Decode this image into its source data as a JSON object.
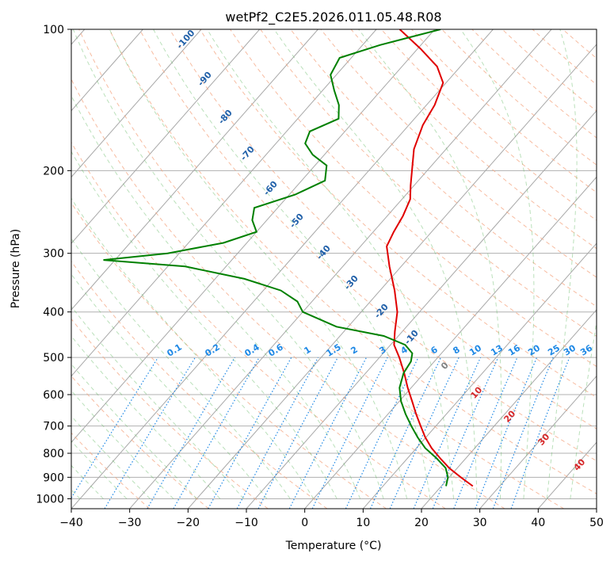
{
  "chart_data": {
    "type": "line",
    "title": "wetPf2_C2E5.2026.011.05.48.R08",
    "xlabel": "Temperature (°C)",
    "ylabel": "Pressure (hPa)",
    "xlim": [
      -40,
      50
    ],
    "ylim": [
      1050,
      100
    ],
    "y_scale": "log",
    "skew": true,
    "grid": true,
    "x_ticks": [
      -40,
      -30,
      -20,
      -10,
      0,
      10,
      20,
      30,
      40,
      50
    ],
    "y_ticks": [
      100,
      200,
      300,
      400,
      500,
      600,
      700,
      800,
      900,
      1000
    ],
    "series": [
      {
        "color": "#e00000",
        "points": [
          [
            940,
            25.4
          ],
          [
            900,
            22.0
          ],
          [
            860,
            18.6
          ],
          [
            820,
            15.6
          ],
          [
            780,
            12.6
          ],
          [
            740,
            9.9
          ],
          [
            700,
            7.4
          ],
          [
            660,
            4.8
          ],
          [
            620,
            2.2
          ],
          [
            580,
            -0.6
          ],
          [
            540,
            -3.4
          ],
          [
            500,
            -6.6
          ],
          [
            470,
            -9.4
          ],
          [
            440,
            -11.3
          ],
          [
            400,
            -13.8
          ],
          [
            360,
            -17.5
          ],
          [
            320,
            -22.0
          ],
          [
            290,
            -25.5
          ],
          [
            270,
            -26.5
          ],
          [
            250,
            -27.3
          ],
          [
            230,
            -28.6
          ],
          [
            215,
            -30.6
          ],
          [
            200,
            -32.6
          ],
          [
            180,
            -35.5
          ],
          [
            160,
            -37.6
          ],
          [
            145,
            -38.6
          ],
          [
            130,
            -40.5
          ],
          [
            120,
            -44.0
          ],
          [
            110,
            -49.5
          ],
          [
            100,
            -56.0
          ]
        ]
      },
      {
        "color": "#008000",
        "points": [
          [
            940,
            20.8
          ],
          [
            900,
            19.8
          ],
          [
            860,
            18.0
          ],
          [
            820,
            15.0
          ],
          [
            780,
            11.5
          ],
          [
            740,
            8.6
          ],
          [
            700,
            5.8
          ],
          [
            660,
            3.0
          ],
          [
            620,
            0.3
          ],
          [
            580,
            -2.0
          ],
          [
            540,
            -3.5
          ],
          [
            510,
            -4.0
          ],
          [
            490,
            -5.0
          ],
          [
            470,
            -7.5
          ],
          [
            450,
            -12.5
          ],
          [
            430,
            -22.0
          ],
          [
            400,
            -30.0
          ],
          [
            380,
            -32.5
          ],
          [
            360,
            -37.0
          ],
          [
            340,
            -45.0
          ],
          [
            320,
            -57.0
          ],
          [
            310,
            -72.0
          ],
          [
            300,
            -62.0
          ],
          [
            285,
            -54.0
          ],
          [
            270,
            -50.0
          ],
          [
            255,
            -52.5
          ],
          [
            240,
            -54.0
          ],
          [
            225,
            -49.0
          ],
          [
            210,
            -46.0
          ],
          [
            195,
            -48.0
          ],
          [
            185,
            -52.0
          ],
          [
            175,
            -55.0
          ],
          [
            165,
            -56.0
          ],
          [
            155,
            -53.0
          ],
          [
            145,
            -55.0
          ],
          [
            135,
            -58.0
          ],
          [
            125,
            -61.0
          ],
          [
            115,
            -62.0
          ],
          [
            108,
            -57.0
          ],
          [
            100,
            -49.0
          ]
        ]
      }
    ],
    "dry_adiabat_labels": [
      "-100",
      "-90",
      "-80",
      "-70",
      "-60",
      "-50",
      "-40",
      "-30",
      "-20",
      "-10"
    ],
    "moist_adiabat_labels": [
      "0",
      "10",
      "20",
      "30",
      "40"
    ],
    "mixing_ratio_labels": [
      "0.1",
      "0.2",
      "0.4",
      "0.6",
      "1",
      "1.5",
      "2",
      "3",
      "4",
      "6",
      "8",
      "10",
      "13",
      "16",
      "20",
      "25",
      "30",
      "36"
    ]
  }
}
